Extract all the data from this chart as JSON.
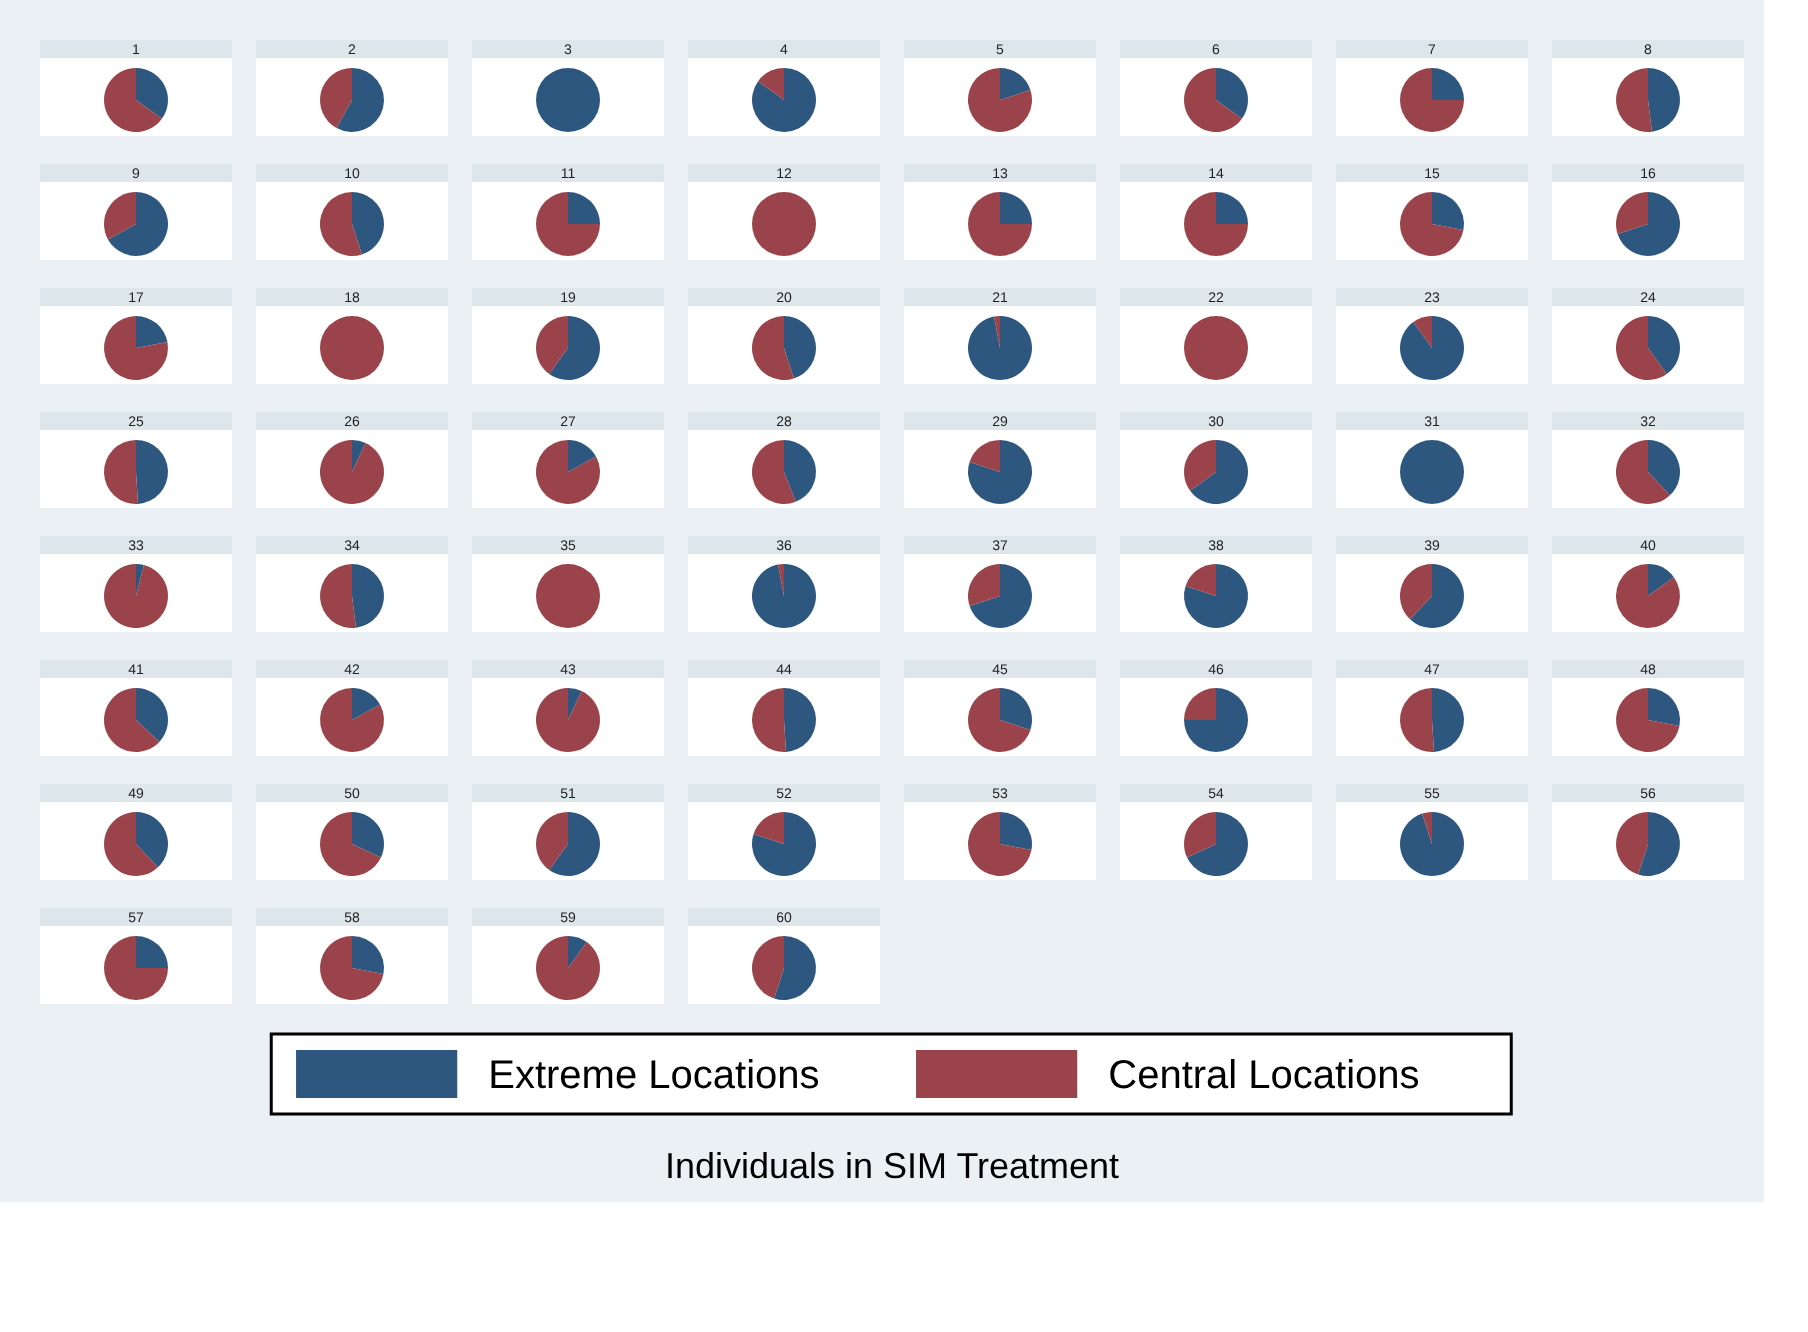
{
  "chart_data": {
    "type": "pie",
    "categories": [
      "Extreme Locations",
      "Central Locations"
    ],
    "colors": [
      "#2e5780",
      "#9b434a"
    ],
    "legend": "bottom",
    "annotations": [
      "Individuals in SIM Treatment"
    ],
    "series": [
      {
        "name": "1",
        "values": [
          35,
          65
        ]
      },
      {
        "name": "2",
        "values": [
          58,
          42
        ]
      },
      {
        "name": "3",
        "values": [
          100,
          0
        ]
      },
      {
        "name": "4",
        "values": [
          85,
          15
        ]
      },
      {
        "name": "5",
        "values": [
          20,
          80
        ]
      },
      {
        "name": "6",
        "values": [
          35,
          65
        ]
      },
      {
        "name": "7",
        "values": [
          25,
          75
        ]
      },
      {
        "name": "8",
        "values": [
          48,
          52
        ]
      },
      {
        "name": "9",
        "values": [
          67,
          33
        ]
      },
      {
        "name": "10",
        "values": [
          45,
          55
        ]
      },
      {
        "name": "11",
        "values": [
          25,
          75
        ]
      },
      {
        "name": "12",
        "values": [
          0,
          100
        ]
      },
      {
        "name": "13",
        "values": [
          25,
          75
        ]
      },
      {
        "name": "14",
        "values": [
          25,
          75
        ]
      },
      {
        "name": "15",
        "values": [
          28,
          72
        ]
      },
      {
        "name": "16",
        "values": [
          70,
          30
        ]
      },
      {
        "name": "17",
        "values": [
          22,
          78
        ]
      },
      {
        "name": "18",
        "values": [
          0,
          100
        ]
      },
      {
        "name": "19",
        "values": [
          60,
          40
        ]
      },
      {
        "name": "20",
        "values": [
          45,
          55
        ]
      },
      {
        "name": "21",
        "values": [
          97,
          3
        ]
      },
      {
        "name": "22",
        "values": [
          0,
          100
        ]
      },
      {
        "name": "23",
        "values": [
          90,
          10
        ]
      },
      {
        "name": "24",
        "values": [
          40,
          60
        ]
      },
      {
        "name": "25",
        "values": [
          49,
          51
        ]
      },
      {
        "name": "26",
        "values": [
          7,
          93
        ]
      },
      {
        "name": "27",
        "values": [
          17,
          83
        ]
      },
      {
        "name": "28",
        "values": [
          44,
          56
        ]
      },
      {
        "name": "29",
        "values": [
          80,
          20
        ]
      },
      {
        "name": "30",
        "values": [
          65,
          35
        ]
      },
      {
        "name": "31",
        "values": [
          100,
          0
        ]
      },
      {
        "name": "32",
        "values": [
          38,
          62
        ]
      },
      {
        "name": "33",
        "values": [
          4,
          96
        ]
      },
      {
        "name": "34",
        "values": [
          48,
          52
        ]
      },
      {
        "name": "35",
        "values": [
          0,
          100
        ]
      },
      {
        "name": "36",
        "values": [
          97,
          3
        ]
      },
      {
        "name": "37",
        "values": [
          70,
          30
        ]
      },
      {
        "name": "38",
        "values": [
          80,
          20
        ]
      },
      {
        "name": "39",
        "values": [
          62,
          38
        ]
      },
      {
        "name": "40",
        "values": [
          15,
          85
        ]
      },
      {
        "name": "41",
        "values": [
          37,
          63
        ]
      },
      {
        "name": "42",
        "values": [
          17,
          83
        ]
      },
      {
        "name": "43",
        "values": [
          7,
          93
        ]
      },
      {
        "name": "44",
        "values": [
          49,
          51
        ]
      },
      {
        "name": "45",
        "values": [
          30,
          70
        ]
      },
      {
        "name": "46",
        "values": [
          75,
          25
        ]
      },
      {
        "name": "47",
        "values": [
          49,
          51
        ]
      },
      {
        "name": "48",
        "values": [
          28,
          72
        ]
      },
      {
        "name": "49",
        "values": [
          38,
          62
        ]
      },
      {
        "name": "50",
        "values": [
          32,
          68
        ]
      },
      {
        "name": "51",
        "values": [
          60,
          40
        ]
      },
      {
        "name": "52",
        "values": [
          80,
          20
        ]
      },
      {
        "name": "53",
        "values": [
          28,
          72
        ]
      },
      {
        "name": "54",
        "values": [
          68,
          32
        ]
      },
      {
        "name": "55",
        "values": [
          95,
          5
        ]
      },
      {
        "name": "56",
        "values": [
          55,
          45
        ]
      },
      {
        "name": "57",
        "values": [
          25,
          75
        ]
      },
      {
        "name": "58",
        "values": [
          28,
          72
        ]
      },
      {
        "name": "59",
        "values": [
          10,
          90
        ]
      },
      {
        "name": "60",
        "values": [
          55,
          45
        ]
      }
    ]
  }
}
